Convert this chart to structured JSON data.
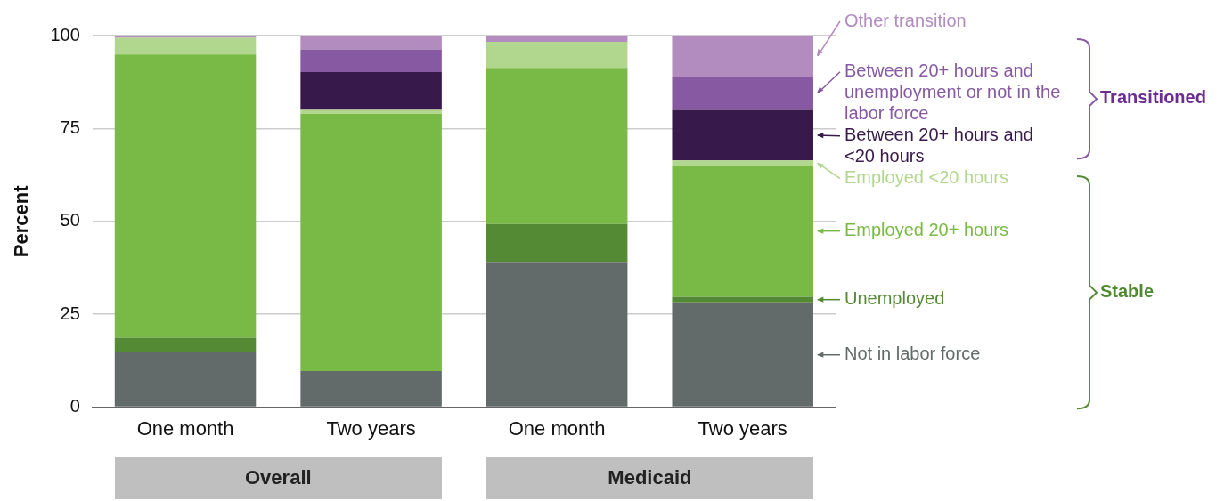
{
  "chart_data": {
    "type": "bar",
    "stacked": true,
    "ylabel": "Percent",
    "categories": [
      "One month",
      "Two years",
      "One month",
      "Two years"
    ],
    "series": [
      {
        "name": "Not in labor force",
        "color": "#626b69",
        "values": [
          15.0,
          9.7,
          39.1,
          28.2
        ]
      },
      {
        "name": "Unemployed",
        "color": "#548a34",
        "values": [
          3.7,
          0,
          10.2,
          1.5
        ]
      },
      {
        "name": "Employed 20+ hours",
        "color": "#79b946",
        "values": [
          76.2,
          69.3,
          42.0,
          35.4
        ]
      },
      {
        "name": "Employed <20 hours",
        "color": "#b1d68d",
        "values": [
          4.5,
          1.0,
          7.0,
          1.3
        ]
      },
      {
        "name": "Between 20+ hours and <20 hours",
        "color": "#371a4b",
        "values": [
          0,
          10.2,
          0,
          13.6
        ]
      },
      {
        "name": "Between 20+ hours and unemployment or not in the labor force",
        "color": "#8659a2",
        "values": [
          0,
          6.1,
          0,
          9.0
        ]
      },
      {
        "name": "Other transition",
        "color": "#b28bbf",
        "values": [
          0.6,
          3.7,
          1.7,
          11.0
        ]
      }
    ],
    "ylim": [
      0,
      100
    ],
    "yticks": [
      0,
      25,
      50,
      75,
      100
    ],
    "grid": "y",
    "legend": "right",
    "annotations": [
      "Overall",
      "Medicaid",
      "Transitioned",
      "Stable"
    ]
  }
}
